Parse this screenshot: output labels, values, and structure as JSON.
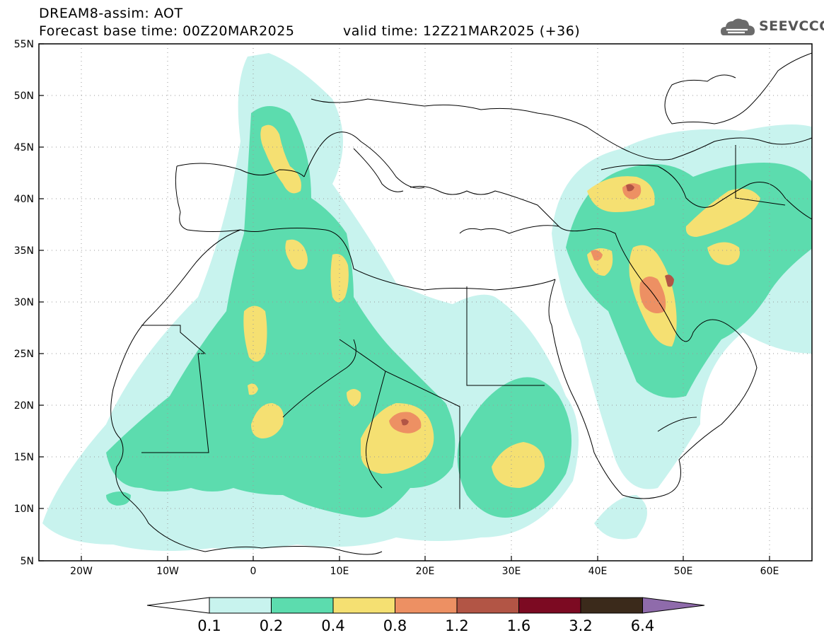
{
  "header": {
    "line1": "DREAM8-assim: AOT",
    "line2": "Forecast base time: 00Z20MAR2025",
    "valid": "valid time: 12Z21MAR2025 (+36)"
  },
  "logo": {
    "text": "SEEVCCC",
    "icon": "cloud-icon"
  },
  "map": {
    "lat_range": [
      5,
      55
    ],
    "lon_range": [
      -25,
      65
    ],
    "lat_ticks": [
      "55N",
      "50N",
      "45N",
      "40N",
      "35N",
      "30N",
      "25N",
      "20N",
      "15N",
      "10N",
      "5N"
    ],
    "lon_ticks": [
      "20W",
      "10W",
      "0",
      "10E",
      "20E",
      "30E",
      "40E",
      "50E",
      "60E"
    ],
    "grid": "dotted"
  },
  "colorbar": {
    "labels": [
      "0.1",
      "0.2",
      "0.4",
      "0.8",
      "1.2",
      "1.6",
      "3.2",
      "6.4"
    ],
    "colors": [
      "#c8f3ee",
      "#5cdcae",
      "#f5e072",
      "#ed9063",
      "#b25545",
      "#7c0a22",
      "#3b2a1b"
    ],
    "over_color": "#8f6bab",
    "under_color": "#ffffff"
  }
}
